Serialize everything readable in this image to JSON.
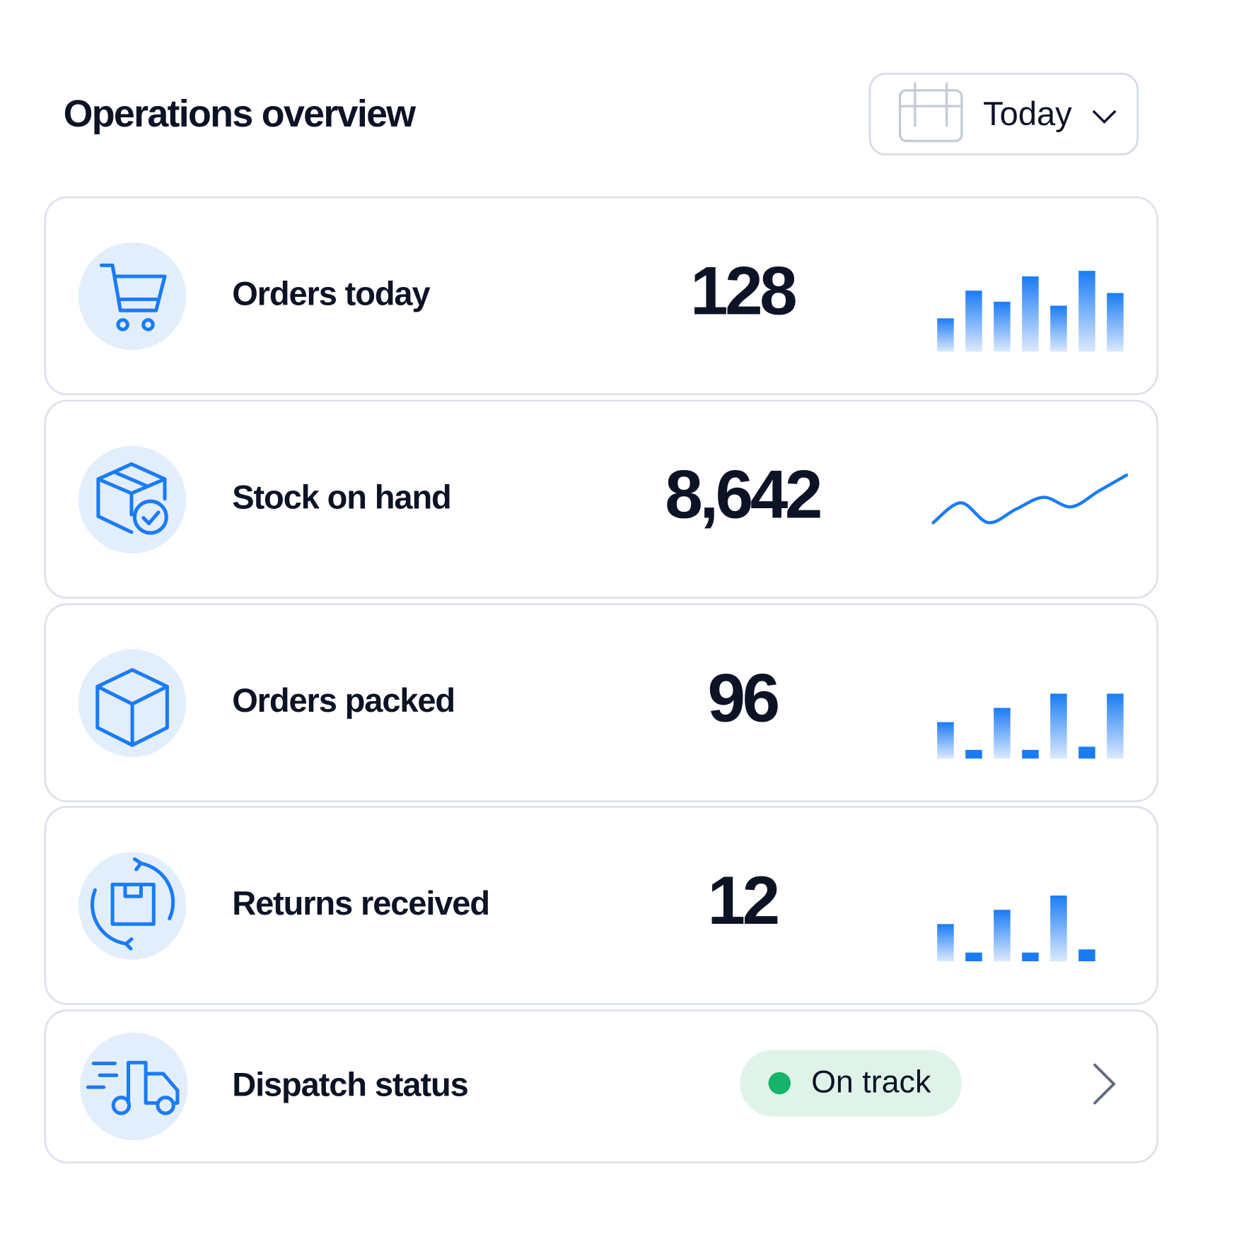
{
  "header": {
    "title": "Operations overview",
    "date_filter": "Today"
  },
  "cards": [
    {
      "label": "Orders today",
      "value": "128",
      "sparkline": {
        "type": "bar",
        "values": [
          42,
          77,
          63,
          95,
          58,
          102,
          74
        ]
      }
    },
    {
      "label": "Stock on hand",
      "value": "8,642",
      "sparkline": {
        "type": "line",
        "values": [
          10,
          35,
          10,
          27,
          42,
          30,
          50,
          70
        ]
      }
    },
    {
      "label": "Orders packed",
      "value": "96",
      "sparkline": {
        "type": "bar",
        "values": [
          46,
          11,
          64,
          11,
          82,
          15,
          82
        ]
      }
    },
    {
      "label": "Returns received",
      "value": "12",
      "sparkline": {
        "type": "bar",
        "values": [
          47,
          11,
          65,
          11,
          83,
          15
        ]
      }
    }
  ],
  "dispatch": {
    "label": "Dispatch status",
    "status": "On track"
  }
}
